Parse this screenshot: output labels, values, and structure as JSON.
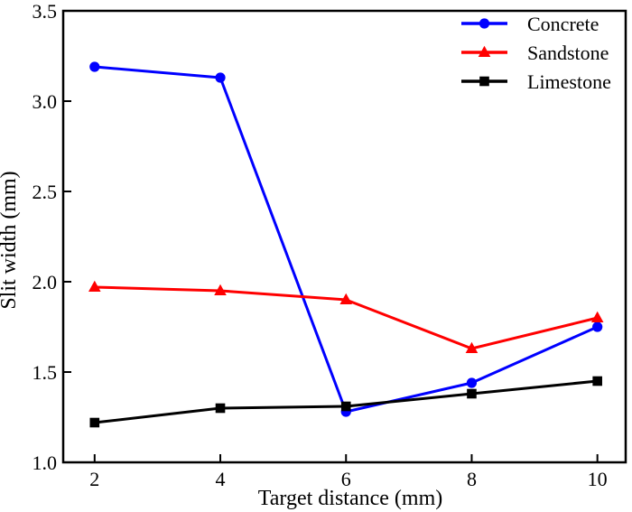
{
  "figure": {
    "background": "#ffffff",
    "border_color": "#000000"
  },
  "chart_data": {
    "type": "line",
    "title": "",
    "xlabel": "Target distance (mm)",
    "ylabel": "Slit width (mm)",
    "x": [
      2,
      4,
      6,
      8,
      10
    ],
    "series": [
      {
        "name": "Concrete",
        "color": "#0000ff",
        "marker": "circle",
        "values": [
          3.19,
          3.13,
          1.28,
          1.44,
          1.75
        ]
      },
      {
        "name": "Sandstone",
        "color": "#ff0000",
        "marker": "triangle",
        "values": [
          1.97,
          1.95,
          1.9,
          1.63,
          1.8
        ]
      },
      {
        "name": "Limestone",
        "color": "#000000",
        "marker": "square",
        "values": [
          1.22,
          1.3,
          1.31,
          1.38,
          1.45
        ]
      }
    ],
    "xlim": [
      1.5,
      10.45
    ],
    "ylim": [
      1.0,
      3.5
    ],
    "x_ticks": [
      "2",
      "4",
      "6",
      "8",
      "10"
    ],
    "y_ticks": [
      "1.0",
      "1.5",
      "2.0",
      "2.5",
      "3.0",
      "3.5"
    ],
    "grid": false,
    "legend_position": "top-right",
    "axis_color": "#000000"
  }
}
